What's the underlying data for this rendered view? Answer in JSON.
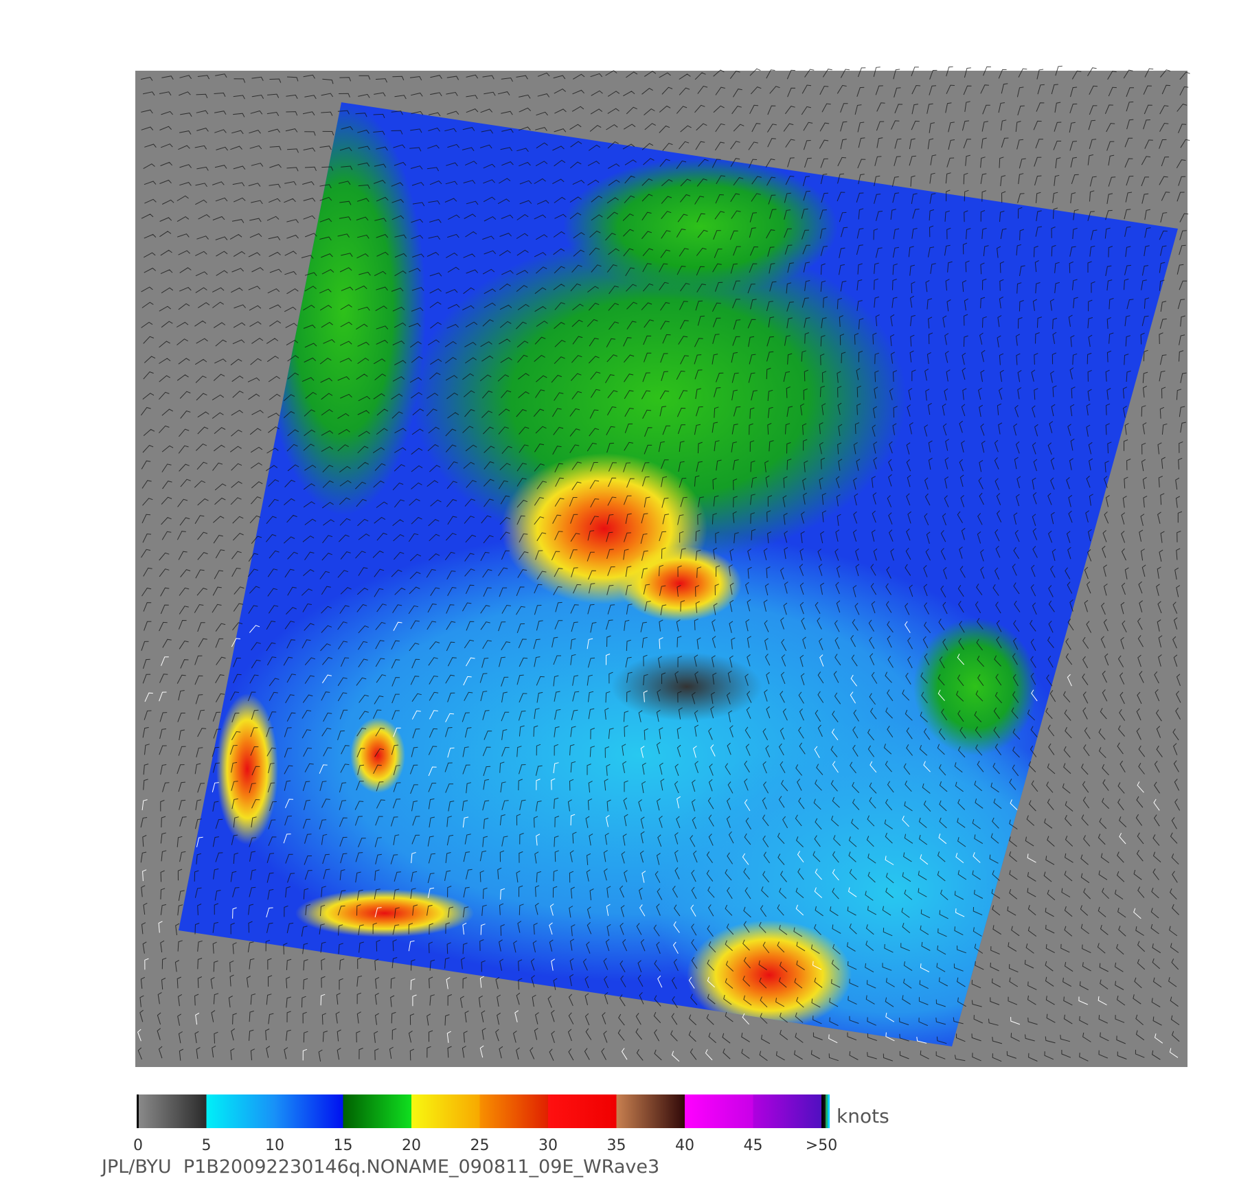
{
  "colorbar": {
    "labels": [
      "0",
      "5",
      "10",
      "15",
      "20",
      "25",
      "30",
      "35",
      "40",
      "45",
      ">50"
    ],
    "unit": "knots"
  },
  "footer": "JPL/BYU  P1B20092230146q.NONAME_090811_09E_WRave3"
}
